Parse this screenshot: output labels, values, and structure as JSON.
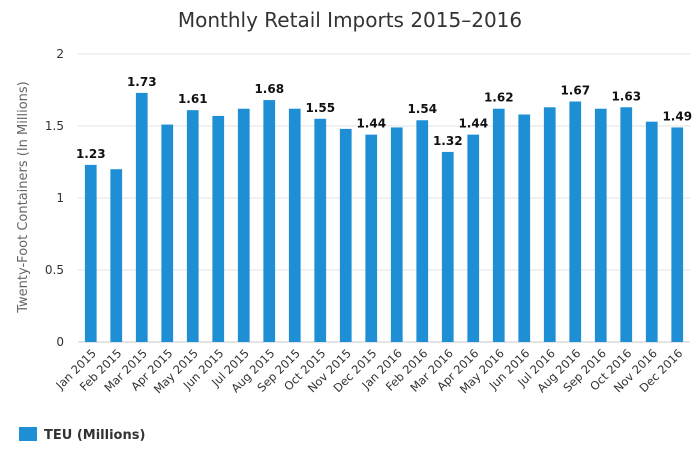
{
  "chart_data": {
    "type": "bar",
    "title": "Monthly Retail Imports 2015–2016",
    "xlabel": "",
    "ylabel": "Twenty-Foot Containers (In Millions)",
    "ylim": [
      0,
      2
    ],
    "yticks": [
      0,
      0.5,
      1,
      1.5,
      2
    ],
    "grid": true,
    "legend_position": "bottom-left",
    "categories": [
      "Jan 2015",
      "Feb 2015",
      "Mar 2015",
      "Apr 2015",
      "May 2015",
      "Jun 2015",
      "Jul 2015",
      "Aug 2015",
      "Sep 2015",
      "Oct 2015",
      "Nov 2015",
      "Dec 2015",
      "Jan 2016",
      "Feb 2016",
      "Mar 2016",
      "Apr 2016",
      "May 2016",
      "Jun 2016",
      "Jul 2016",
      "Aug 2016",
      "Sep 2016",
      "Oct 2016",
      "Nov 2016",
      "Dec 2016"
    ],
    "series": [
      {
        "name": "TEU (Millions)",
        "color": "#1e8fd5",
        "values": [
          1.23,
          1.2,
          1.73,
          1.51,
          1.61,
          1.57,
          1.62,
          1.68,
          1.62,
          1.55,
          1.48,
          1.44,
          1.49,
          1.54,
          1.32,
          1.44,
          1.62,
          1.58,
          1.63,
          1.67,
          1.62,
          1.63,
          1.53,
          1.49
        ],
        "data_labels": [
          "1.23",
          "",
          "1.73",
          "",
          "1.61",
          "",
          "",
          "1.68",
          "",
          "1.55",
          "",
          "1.44",
          "",
          "1.54",
          "1.32",
          "1.44",
          "1.62",
          "",
          "",
          "1.67",
          "",
          "1.63",
          "",
          "1.49"
        ]
      }
    ]
  }
}
